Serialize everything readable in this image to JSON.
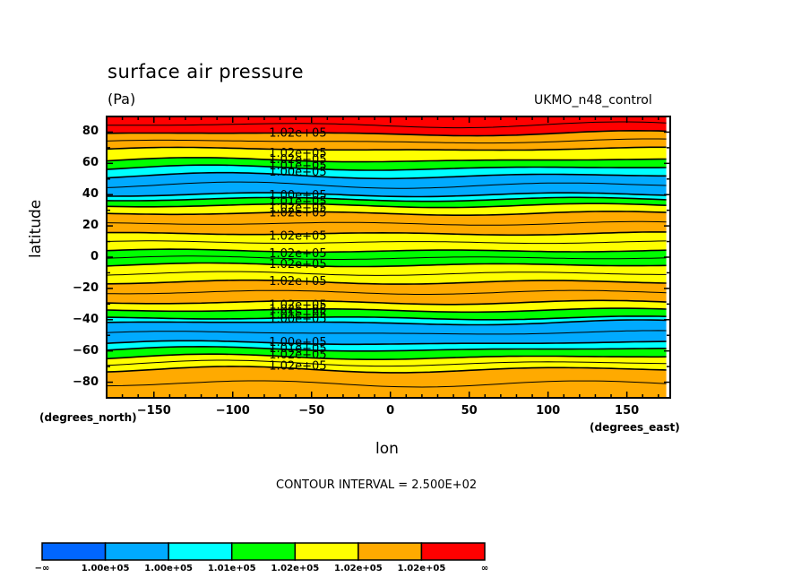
{
  "header": {
    "title": "surface air pressure",
    "units": "(Pa)",
    "dataset": "UKMO_n48_control"
  },
  "axes": {
    "ylabel": "latitude",
    "xlabel": "lon",
    "y_units": "(degrees_north)",
    "x_units": "(degrees_east)"
  },
  "contour_note": "CONTOUR INTERVAL = 2.500E+02",
  "chart_data": {
    "type": "heatmap",
    "subtype": "filled-contour",
    "title": "surface air pressure",
    "subtitle": "(Pa)",
    "dataset_label": "UKMO_n48_control",
    "xlabel": "lon",
    "ylabel": "latitude",
    "x_units": "degrees_east",
    "y_units": "degrees_north",
    "xlim": [
      -180,
      177.5
    ],
    "ylim": [
      -90,
      90
    ],
    "x_ticks": [
      -150,
      -100,
      -50,
      0,
      50,
      100,
      150
    ],
    "x_tick_labels": [
      "−150",
      "−100",
      "−50",
      "0",
      "50",
      "100",
      "150"
    ],
    "y_ticks": [
      80,
      60,
      40,
      20,
      0,
      -20,
      -40,
      -60,
      -80
    ],
    "y_tick_labels": [
      "80",
      "60",
      "40",
      "20",
      "0",
      "−20",
      "−40",
      "−60",
      "−80"
    ],
    "minor_tick_interval": 10,
    "grid": false,
    "contour_interval": 250,
    "colorbar": {
      "placement": "bottom-left",
      "colors": [
        "#0066ff",
        "#00aaff",
        "#00ffff",
        "#00ff00",
        "#ffff00",
        "#ffaa00",
        "#ff0000"
      ],
      "boundary_labels": [
        "−∞",
        "1.00e+05",
        "1.00e+05",
        "1.01e+05",
        "1.02e+05",
        "1.02e+05",
        "1.02e+05",
        "∞"
      ]
    },
    "contour_labels": [
      {
        "lat": 80,
        "text": "1.02e+05"
      },
      {
        "lat": 67,
        "text": "1.02e+05"
      },
      {
        "lat": 63,
        "text": "1.02e+05"
      },
      {
        "lat": 59,
        "text": "1.01e+05"
      },
      {
        "lat": 55,
        "text": "1.00e+05"
      },
      {
        "lat": 40,
        "text": "1.00e+05"
      },
      {
        "lat": 36,
        "text": "1.01e+05"
      },
      {
        "lat": 32,
        "text": "1.02e+05"
      },
      {
        "lat": 29,
        "text": "1.02e+05"
      },
      {
        "lat": 14,
        "text": "1.02e+05"
      },
      {
        "lat": 3,
        "text": "1.02e+05"
      },
      {
        "lat": -4,
        "text": "1.02e+05"
      },
      {
        "lat": -15,
        "text": "1.02e+05"
      },
      {
        "lat": -30,
        "text": "1.02e+05"
      },
      {
        "lat": -33,
        "text": "1.02e+05"
      },
      {
        "lat": -36,
        "text": "1.01e+05"
      },
      {
        "lat": -39,
        "text": "1.00e+05"
      },
      {
        "lat": -54,
        "text": "1.00e+05"
      },
      {
        "lat": -58,
        "text": "1.01e+05"
      },
      {
        "lat": -62,
        "text": "1.02e+05"
      },
      {
        "lat": -69,
        "text": "1.02e+05"
      }
    ],
    "zonal_bands": [
      {
        "from_lat": 90,
        "to_lat": 79,
        "level": 6
      },
      {
        "from_lat": 79,
        "to_lat": 69,
        "level": 5
      },
      {
        "from_lat": 69,
        "to_lat": 62,
        "level": 4
      },
      {
        "from_lat": 62,
        "to_lat": 57,
        "level": 3
      },
      {
        "from_lat": 57,
        "to_lat": 52,
        "level": 2
      },
      {
        "from_lat": 52,
        "to_lat": 40,
        "level": 1
      },
      {
        "from_lat": 40,
        "to_lat": 37,
        "level": 2
      },
      {
        "from_lat": 37,
        "to_lat": 33,
        "level": 3
      },
      {
        "from_lat": 33,
        "to_lat": 28,
        "level": 4
      },
      {
        "from_lat": 28,
        "to_lat": 15,
        "level": 5
      },
      {
        "from_lat": 15,
        "to_lat": 4,
        "level": 4
      },
      {
        "from_lat": 4,
        "to_lat": -5,
        "level": 3
      },
      {
        "from_lat": -5,
        "to_lat": -16,
        "level": 4
      },
      {
        "from_lat": -16,
        "to_lat": -29,
        "level": 5
      },
      {
        "from_lat": -29,
        "to_lat": -34,
        "level": 4
      },
      {
        "from_lat": -34,
        "to_lat": -39,
        "level": 3
      },
      {
        "from_lat": -39,
        "to_lat": -42,
        "level": 2
      },
      {
        "from_lat": -42,
        "to_lat": -55,
        "level": 1
      },
      {
        "from_lat": -55,
        "to_lat": -59,
        "level": 2
      },
      {
        "from_lat": -59,
        "to_lat": -64,
        "level": 3
      },
      {
        "from_lat": -64,
        "to_lat": -72,
        "level": 4
      },
      {
        "from_lat": -72,
        "to_lat": -90,
        "level": 5
      }
    ]
  }
}
